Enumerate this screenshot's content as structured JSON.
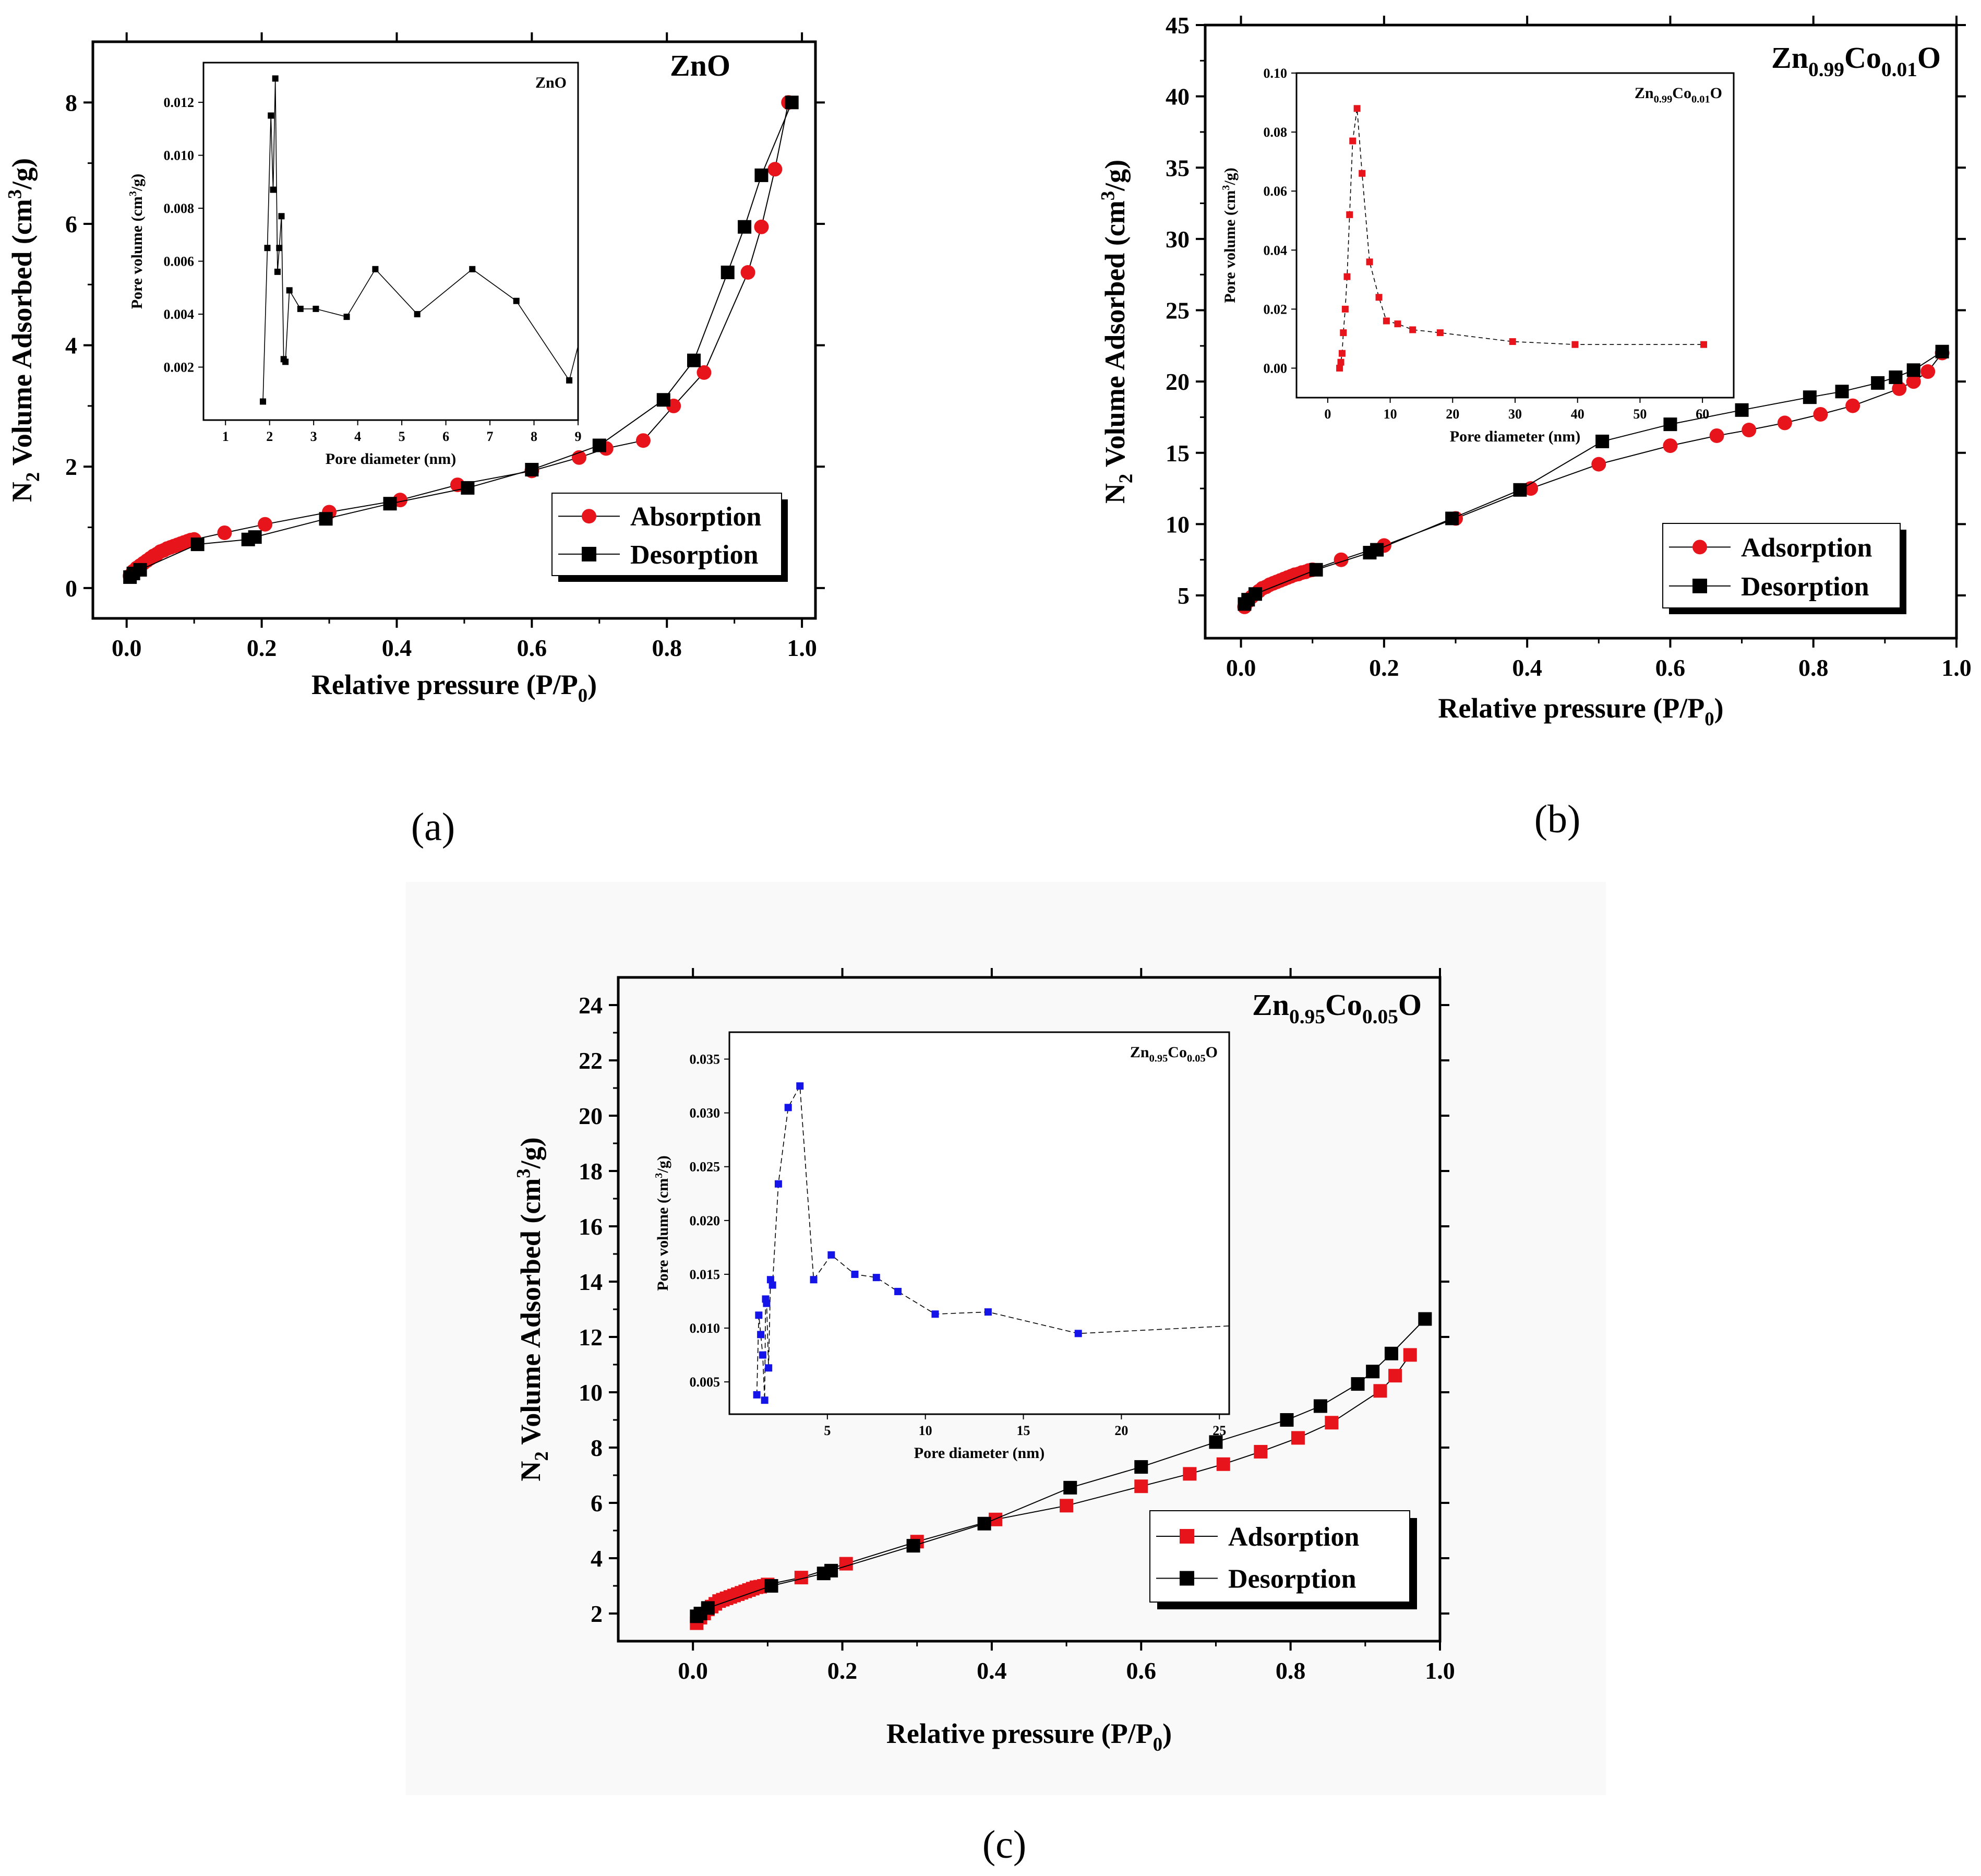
{
  "colors": {
    "adsorption_a": "#e8141b",
    "adsorption_b": "#e8141b",
    "adsorption_c": "#e8141b",
    "desorption": "#000000",
    "inset_a": "#000000",
    "inset_b": "#e8141b",
    "inset_c": "#1414e8",
    "background_panel": "#f9f9f9"
  },
  "chart_data": [
    {
      "type": "scatter",
      "panel": "a",
      "caption": "(a)",
      "title": "ZnO",
      "xlabel": "Relative pressure (P/P0)",
      "ylabel": "N2 Volume Adsorbed (cm3/g)",
      "xlim": [
        -0.05,
        1.02
      ],
      "ylim": [
        -0.5,
        9.0
      ],
      "xticks": [
        0.0,
        0.2,
        0.4,
        0.6,
        0.8,
        1.0
      ],
      "xtick_labels": [
        "0.0",
        "0.2",
        "0.4",
        "0.6",
        "0.8",
        "1.0"
      ],
      "yticks": [
        0,
        2,
        4,
        6,
        8
      ],
      "ytick_labels": [
        "0",
        "2",
        "4",
        "6",
        "8"
      ],
      "legend": [
        "Absorption",
        "Desorption"
      ],
      "legend_position": "bottom-right",
      "series": [
        {
          "name": "Absorption",
          "marker": "circle",
          "x": [
            0.005,
            0.01,
            0.015,
            0.02,
            0.025,
            0.03,
            0.035,
            0.04,
            0.045,
            0.05,
            0.055,
            0.06,
            0.065,
            0.07,
            0.075,
            0.08,
            0.085,
            0.09,
            0.095,
            0.1,
            0.145,
            0.205,
            0.3,
            0.405,
            0.49,
            0.6,
            0.67,
            0.71,
            0.765,
            0.81,
            0.855,
            0.92,
            0.94,
            0.96,
            0.98
          ],
          "y": [
            0.2,
            0.28,
            0.33,
            0.37,
            0.41,
            0.45,
            0.49,
            0.53,
            0.56,
            0.6,
            0.62,
            0.65,
            0.67,
            0.69,
            0.71,
            0.73,
            0.75,
            0.77,
            0.79,
            0.8,
            0.91,
            1.05,
            1.25,
            1.45,
            1.7,
            1.93,
            2.15,
            2.3,
            2.43,
            3.0,
            3.55,
            5.2,
            5.95,
            6.9,
            8.0
          ]
        },
        {
          "name": "Desorption",
          "marker": "square",
          "x": [
            0.005,
            0.01,
            0.02,
            0.105,
            0.18,
            0.19,
            0.295,
            0.39,
            0.505,
            0.6,
            0.7,
            0.795,
            0.84,
            0.89,
            0.915,
            0.94,
            0.985
          ],
          "y": [
            0.18,
            0.24,
            0.3,
            0.72,
            0.8,
            0.84,
            1.14,
            1.39,
            1.65,
            1.95,
            2.35,
            3.1,
            3.75,
            5.2,
            5.95,
            6.8,
            8.0
          ]
        }
      ],
      "inset": {
        "type": "line",
        "title": "ZnO",
        "xlabel": "Pore diameter (nm)",
        "ylabel": "Pore volume (cm3/g)",
        "xlim": [
          0.5,
          9.0
        ],
        "ylim": [
          0.0,
          0.0135
        ],
        "xticks": [
          1,
          2,
          3,
          4,
          5,
          6,
          7,
          8,
          9
        ],
        "xtick_labels": [
          "1",
          "2",
          "3",
          "4",
          "5",
          "6",
          "7",
          "8",
          "9"
        ],
        "yticks": [
          0.002,
          0.004,
          0.006,
          0.008,
          0.01,
          0.012
        ],
        "ytick_labels": [
          "0.002",
          "0.004",
          "0.006",
          "0.008",
          "0.010",
          "0.012"
        ],
        "x": [
          1.85,
          1.95,
          2.03,
          2.08,
          2.13,
          2.18,
          2.22,
          2.27,
          2.32,
          2.36,
          2.45,
          2.7,
          3.05,
          3.75,
          4.4,
          5.35,
          6.6,
          7.6,
          8.8,
          9.0
        ],
        "y": [
          0.0007,
          0.0065,
          0.0115,
          0.0087,
          0.0129,
          0.0056,
          0.0065,
          0.0077,
          0.0023,
          0.0022,
          0.0049,
          0.0042,
          0.0042,
          0.0039,
          0.0057,
          0.004,
          0.0057,
          0.0045,
          0.0015,
          0.0028
        ]
      }
    },
    {
      "type": "scatter",
      "panel": "b",
      "caption": "(b)",
      "title": "Zn0.99Co0.01O",
      "xlabel": "Relative pressure (P/P0)",
      "ylabel": "N2 Volume Adsorbed (cm3/g)",
      "xlim": [
        -0.05,
        1.0
      ],
      "ylim": [
        2.0,
        45.0
      ],
      "xticks": [
        0.0,
        0.2,
        0.4,
        0.6,
        0.8,
        1.0
      ],
      "xtick_labels": [
        "0.0",
        "0.2",
        "0.4",
        "0.6",
        "0.8",
        "1.0"
      ],
      "yticks": [
        5,
        10,
        15,
        20,
        25,
        30,
        35,
        40,
        45
      ],
      "ytick_labels": [
        "5",
        "10",
        "15",
        "20",
        "25",
        "30",
        "35",
        "40",
        "45"
      ],
      "legend": [
        "Adsorption",
        "Desorption"
      ],
      "legend_position": "bottom-right",
      "series": [
        {
          "name": "Adsorption",
          "marker": "circle",
          "x": [
            0.005,
            0.01,
            0.015,
            0.02,
            0.025,
            0.03,
            0.035,
            0.04,
            0.045,
            0.05,
            0.055,
            0.06,
            0.065,
            0.07,
            0.075,
            0.08,
            0.085,
            0.09,
            0.095,
            0.1,
            0.14,
            0.2,
            0.3,
            0.405,
            0.5,
            0.6,
            0.665,
            0.71,
            0.76,
            0.81,
            0.855,
            0.92,
            0.94,
            0.96,
            0.98
          ],
          "y": [
            4.2,
            4.6,
            4.9,
            5.1,
            5.3,
            5.5,
            5.6,
            5.75,
            5.85,
            5.95,
            6.05,
            6.15,
            6.25,
            6.35,
            6.45,
            6.5,
            6.6,
            6.65,
            6.75,
            6.8,
            7.5,
            8.5,
            10.4,
            12.5,
            14.2,
            15.5,
            16.2,
            16.6,
            17.1,
            17.7,
            18.3,
            19.5,
            20.0,
            20.7,
            22.0
          ]
        },
        {
          "name": "Desorption",
          "marker": "square",
          "x": [
            0.005,
            0.01,
            0.02,
            0.105,
            0.18,
            0.19,
            0.295,
            0.39,
            0.505,
            0.6,
            0.7,
            0.795,
            0.84,
            0.89,
            0.915,
            0.94,
            0.98
          ],
          "y": [
            4.4,
            4.7,
            5.1,
            6.8,
            8.0,
            8.2,
            10.4,
            12.4,
            15.8,
            17.0,
            18.0,
            18.9,
            19.3,
            19.9,
            20.3,
            20.8,
            22.1
          ]
        }
      ],
      "inset": {
        "type": "line",
        "title": "Zn0.99Co0.01O",
        "xlabel": "Pore diameter (nm)",
        "ylabel": "Pore volume (cm3/g)",
        "xlim": [
          -5.0,
          65.0
        ],
        "ylim": [
          -0.01,
          0.1
        ],
        "xticks": [
          0,
          10,
          20,
          30,
          40,
          50,
          60
        ],
        "xtick_labels": [
          "0",
          "10",
          "20",
          "30",
          "40",
          "50",
          "60"
        ],
        "yticks": [
          0.0,
          0.02,
          0.04,
          0.06,
          0.08,
          0.1
        ],
        "ytick_labels": [
          "0.00",
          "0.02",
          "0.04",
          "0.06",
          "0.08",
          "0.10"
        ],
        "x": [
          1.9,
          2.1,
          2.3,
          2.5,
          2.8,
          3.1,
          3.5,
          4.0,
          4.7,
          5.5,
          6.7,
          8.2,
          9.4,
          11.2,
          13.6,
          18.0,
          29.6,
          39.6,
          60.2
        ],
        "y": [
          0.0,
          0.002,
          0.005,
          0.012,
          0.02,
          0.031,
          0.052,
          0.077,
          0.088,
          0.066,
          0.036,
          0.024,
          0.016,
          0.015,
          0.013,
          0.012,
          0.009,
          0.008,
          0.008
        ]
      }
    },
    {
      "type": "scatter",
      "panel": "c",
      "caption": "(c)",
      "title": "Zn0.95Co0.05O",
      "xlabel": "Relative pressure (P/P0)",
      "ylabel": "N2 Volume Adsorbed (cm3/g)",
      "xlim": [
        -0.1,
        1.0
      ],
      "ylim": [
        1.0,
        25.0
      ],
      "xticks": [
        0.0,
        0.2,
        0.4,
        0.6,
        0.8,
        1.0
      ],
      "xtick_labels": [
        "0.0",
        "0.2",
        "0.4",
        "0.6",
        "0.8",
        "1.0"
      ],
      "yticks": [
        2,
        4,
        6,
        8,
        10,
        12,
        14,
        16,
        18,
        20,
        22,
        24
      ],
      "ytick_labels": [
        "2",
        "4",
        "6",
        "8",
        "10",
        "12",
        "14",
        "16",
        "18",
        "20",
        "22",
        "24"
      ],
      "legend": [
        "Adsorption",
        "Desorption"
      ],
      "legend_position": "bottom-right",
      "series": [
        {
          "name": "Adsorption",
          "marker": "square",
          "x": [
            0.005,
            0.01,
            0.015,
            0.02,
            0.025,
            0.03,
            0.035,
            0.04,
            0.045,
            0.05,
            0.055,
            0.06,
            0.065,
            0.07,
            0.075,
            0.08,
            0.085,
            0.09,
            0.095,
            0.1,
            0.145,
            0.205,
            0.3,
            0.405,
            0.5,
            0.6,
            0.665,
            0.71,
            0.76,
            0.81,
            0.855,
            0.92,
            0.94,
            0.96
          ],
          "y": [
            1.65,
            1.85,
            2.0,
            2.15,
            2.25,
            2.35,
            2.45,
            2.5,
            2.55,
            2.6,
            2.65,
            2.7,
            2.75,
            2.8,
            2.85,
            2.9,
            2.95,
            2.97,
            3.0,
            3.05,
            3.3,
            3.8,
            4.6,
            5.4,
            5.9,
            6.6,
            7.05,
            7.4,
            7.85,
            8.35,
            8.9,
            10.05,
            10.6,
            11.35
          ]
        },
        {
          "name": "Desorption",
          "marker": "square",
          "x": [
            0.005,
            0.01,
            0.02,
            0.105,
            0.175,
            0.185,
            0.295,
            0.39,
            0.505,
            0.6,
            0.7,
            0.795,
            0.84,
            0.89,
            0.91,
            0.935,
            0.98
          ],
          "y": [
            1.9,
            2.0,
            2.2,
            3.0,
            3.45,
            3.55,
            4.45,
            5.25,
            6.55,
            7.3,
            8.2,
            9.0,
            9.5,
            10.3,
            10.75,
            11.4,
            12.65
          ]
        }
      ],
      "inset": {
        "type": "line",
        "title": "Zn0.95Co0.05O",
        "xlabel": "Pore diameter (nm)",
        "ylabel": "Pore volume (cm3/g)",
        "xlim": [
          0.0,
          25.5
        ],
        "ylim": [
          0.002,
          0.0375
        ],
        "xticks": [
          5,
          10,
          15,
          20,
          25
        ],
        "xtick_labels": [
          "5",
          "10",
          "15",
          "20",
          "25"
        ],
        "yticks": [
          0.005,
          0.01,
          0.015,
          0.02,
          0.025,
          0.03,
          0.035
        ],
        "ytick_labels": [
          "0.005",
          "0.010",
          "0.015",
          "0.020",
          "0.025",
          "0.030",
          "0.035"
        ],
        "x": [
          1.4,
          1.5,
          1.6,
          1.7,
          1.8,
          1.85,
          1.9,
          2.0,
          2.1,
          2.2,
          2.5,
          3.0,
          3.6,
          4.3,
          5.2,
          6.4,
          7.5,
          8.6,
          10.5,
          13.2,
          17.8,
          25.5
        ],
        "y": [
          0.0038,
          0.0112,
          0.0094,
          0.0075,
          0.0033,
          0.0127,
          0.0123,
          0.0063,
          0.0145,
          0.014,
          0.0234,
          0.0305,
          0.0325,
          0.0145,
          0.0168,
          0.015,
          0.0147,
          0.0134,
          0.0113,
          0.0115,
          0.0095,
          0.0102
        ]
      }
    }
  ]
}
